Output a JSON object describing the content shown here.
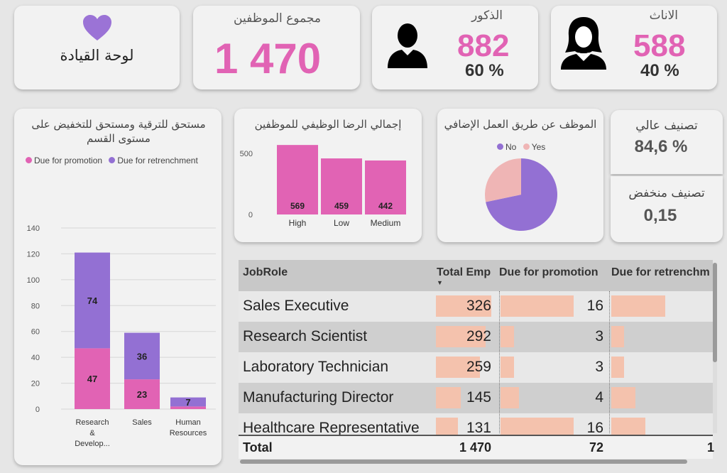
{
  "header": {
    "logo_title": "لوحة القيادة",
    "total": {
      "label": "مجموع الموظفين",
      "value": "1 470"
    },
    "male": {
      "label": "الذكور",
      "value": "882",
      "pct": "60 %"
    },
    "female": {
      "label": "الاناث",
      "value": "588",
      "pct": "40 %"
    }
  },
  "colors": {
    "promotion": "#e163b4",
    "retrenchment": "#9370d3",
    "yes": "#efb5b5",
    "no": "#9370d3",
    "table_bar": "#f4c2ad",
    "heart": "#9b73d6"
  },
  "dept_chart": {
    "title": "مستحق للترقية ومستحق للتخفيض على مستوى القسم",
    "legend": [
      "Due for promotion",
      "Due for retrenchment"
    ]
  },
  "sat_chart": {
    "title": "إجمالي الرضا الوظيفي للموظفين"
  },
  "ot_chart": {
    "title": "الموظف عن طريق العمل الإضافي",
    "legend": [
      "No",
      "Yes"
    ]
  },
  "rating_high": {
    "label": "تصنيف عالي",
    "value": "84,6 %"
  },
  "rating_low": {
    "label": "تصنيف منخفض",
    "value": "0,15"
  },
  "chart_data": [
    {
      "type": "bar",
      "stacked": true,
      "title": "مستحق للترقية ومستحق للتخفيض على مستوى القسم",
      "categories": [
        "Research & Develop...",
        "Sales",
        "Human Resources"
      ],
      "series": [
        {
          "name": "Due for promotion",
          "values": [
            47,
            23,
            2
          ]
        },
        {
          "name": "Due for retrenchment",
          "values": [
            74,
            36,
            7
          ]
        }
      ],
      "data_labels": [
        [
          "47",
          "23",
          ""
        ],
        [
          "74",
          "36",
          "7"
        ]
      ],
      "ylim": [
        0,
        140
      ],
      "yticks": [
        0,
        20,
        40,
        60,
        80,
        100,
        120,
        140
      ],
      "legend_position": "top-left",
      "grid": true
    },
    {
      "type": "bar",
      "title": "إجمالي الرضا الوظيفي للموظفين",
      "categories": [
        "High",
        "Low",
        "Medium"
      ],
      "values": [
        569,
        459,
        442
      ],
      "ylim": [
        0,
        650
      ],
      "yticks": [
        0,
        500
      ],
      "grid": false
    },
    {
      "type": "pie",
      "title": "الموظف عن طريق العمل الإضافي",
      "labels": [
        "No",
        "Yes"
      ],
      "values": [
        1054,
        416
      ],
      "legend_position": "top-center"
    }
  ],
  "table": {
    "columns": [
      "JobRole",
      "Total Emp",
      "Due for promotion",
      "Due for retrenchm"
    ],
    "sort_indicator": "▼",
    "rows": [
      {
        "role": "Sales Executive",
        "total": "326",
        "promo": "16",
        "retr": "",
        "total_v": 326,
        "promo_v": 16,
        "retr_v": 38
      },
      {
        "role": "Research Scientist",
        "total": "292",
        "promo": "3",
        "retr": "",
        "total_v": 292,
        "promo_v": 3,
        "retr_v": 9
      },
      {
        "role": "Laboratory Technician",
        "total": "259",
        "promo": "3",
        "retr": "",
        "total_v": 259,
        "promo_v": 3,
        "retr_v": 9
      },
      {
        "role": "Manufacturing Director",
        "total": "145",
        "promo": "4",
        "retr": "",
        "total_v": 145,
        "promo_v": 4,
        "retr_v": 17
      },
      {
        "role": "Healthcare Representative",
        "total": "131",
        "promo": "16",
        "retr": "",
        "total_v": 131,
        "promo_v": 16,
        "retr_v": 24
      }
    ],
    "total": {
      "label": "Total",
      "total": "1 470",
      "promo": "72",
      "retr": "1"
    }
  }
}
